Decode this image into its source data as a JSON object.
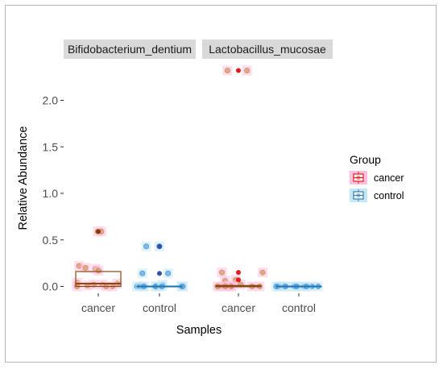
{
  "chart_data": {
    "type": "boxplot",
    "xlabel": "Samples",
    "ylabel": "Relative Abundance",
    "ylim": [
      -0.08,
      2.43
    ],
    "yticks": [
      "0.0",
      "0.5",
      "1.0",
      "1.5",
      "2.0"
    ],
    "ytick_values": [
      0,
      0.5,
      1.0,
      1.5,
      2.0
    ],
    "categories": [
      "cancer",
      "control"
    ],
    "facets": [
      {
        "name": "Bifidobacterium_dentium",
        "groups": [
          {
            "name": "cancer",
            "box": {
              "q1": 0.0,
              "median": 0.03,
              "q3": 0.16
            },
            "outliers": [
              0.59
            ],
            "points": [
              0.59,
              0.59,
              0.22,
              0.2,
              0.19,
              0.17,
              0.04,
              0.03,
              0.02,
              0.02,
              0.01,
              0.0,
              0.0,
              0.0
            ]
          },
          {
            "name": "control",
            "box": {
              "q1": 0.0,
              "median": 0.0,
              "q3": 0.0
            },
            "outliers": [
              0.43,
              0.14
            ],
            "points": [
              0.43,
              0.43,
              0.14,
              0.14,
              0.02,
              0.0,
              0.0,
              0.0,
              0.0,
              0.0,
              0.0,
              0.0,
              0.0,
              0.0,
              0.0,
              0.0
            ]
          }
        ]
      },
      {
        "name": "Lactobacillus_mucosae",
        "groups": [
          {
            "name": "cancer",
            "box": {
              "q1": 0.0,
              "median": 0.0,
              "q3": 0.01
            },
            "outliers": [
              2.32,
              0.15,
              0.07
            ],
            "points": [
              2.32,
              2.32,
              0.15,
              0.15,
              0.07,
              0.06,
              0.02,
              0.01,
              0.0,
              0.0,
              0.0,
              0.0,
              0.0,
              0.0,
              0.0
            ]
          },
          {
            "name": "control",
            "box": {
              "q1": 0.0,
              "median": 0.0,
              "q3": 0.0
            },
            "outliers": [],
            "points": [
              0.0,
              0.0,
              0.0,
              0.0,
              0.0,
              0.0,
              0.0,
              0.0,
              0.0,
              0.0,
              0.0,
              0.0
            ]
          }
        ]
      }
    ],
    "legend": {
      "title": "Group",
      "position": "right",
      "entries": [
        {
          "name": "cancer",
          "color": "#e41a1c"
        },
        {
          "name": "control",
          "color": "#377eb8"
        }
      ]
    },
    "grid": false,
    "colors": {
      "cancer_box": "#8b4513",
      "cancer_fill": "#ffc0e0",
      "cancer_point": "#c8864a",
      "cancer_outlier": "#8b3a0f",
      "control_box": "#1f78b4",
      "control_fill": "#c6e8f5",
      "control_point": "#3a8fd6",
      "control_outlier": "#2f4fa8",
      "lacto_cancer_outlier": "#e41a1c",
      "strip": "#d9d9d9"
    }
  }
}
